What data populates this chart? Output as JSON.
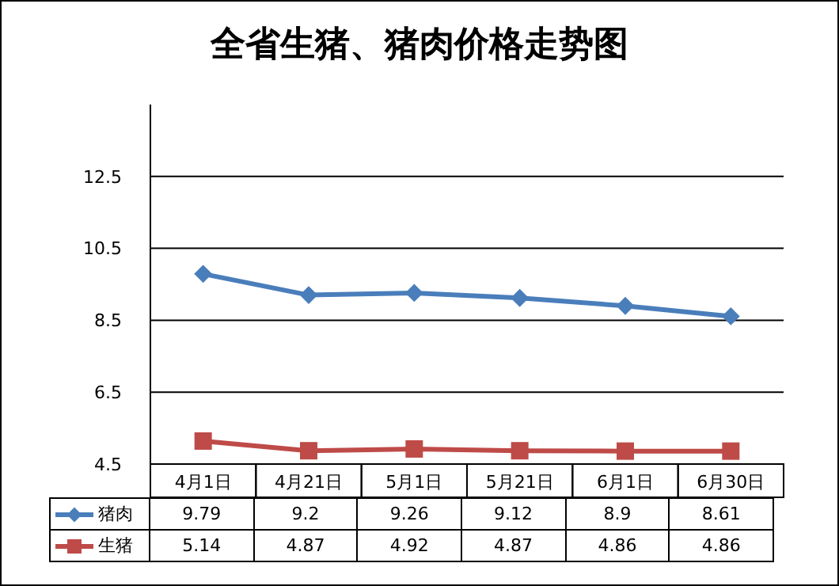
{
  "chart_data": {
    "type": "line",
    "title": "全省生猪、猪肉价格走势图",
    "categories": [
      "4月1日",
      "4月21日",
      "5月1日",
      "5月21日",
      "6月1日",
      "6月30日"
    ],
    "series": [
      {
        "name": "猪肉",
        "color": "#4a7ebb",
        "marker": "diamond",
        "values": [
          9.79,
          9.2,
          9.26,
          9.12,
          8.9,
          8.61
        ]
      },
      {
        "name": "生猪",
        "color": "#be4b48",
        "marker": "square",
        "values": [
          5.14,
          4.87,
          4.92,
          4.87,
          4.86,
          4.86
        ]
      }
    ],
    "ylim": [
      4.5,
      14.5
    ],
    "yticks": [
      4.5,
      6.5,
      8.5,
      10.5,
      12.5
    ],
    "grid": "y",
    "legend": "bottom",
    "data_labels": true
  }
}
